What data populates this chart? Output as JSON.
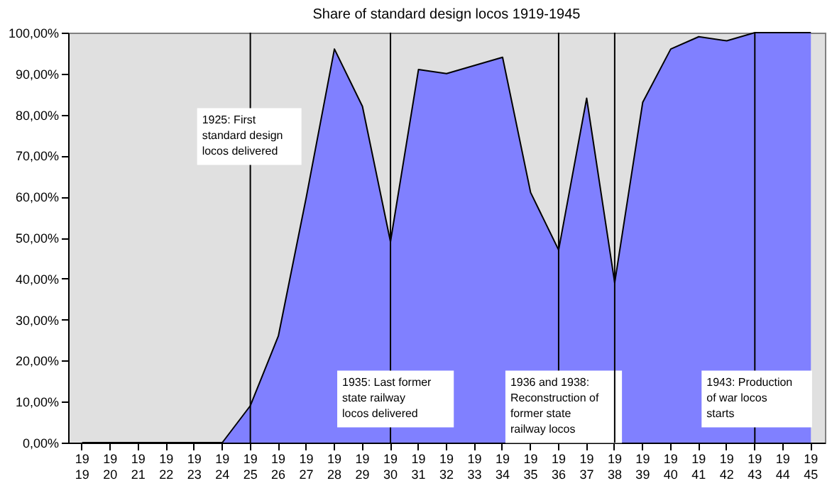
{
  "chart_data": {
    "type": "area",
    "title": "Share of standard design locos 1919-1945",
    "categories": [
      "1919",
      "1920",
      "1921",
      "1922",
      "1923",
      "1924",
      "1925",
      "1926",
      "1927",
      "1928",
      "1929",
      "1930",
      "1931",
      "1932",
      "1933",
      "1934",
      "1935",
      "1936",
      "1937",
      "1938",
      "1939",
      "1940",
      "1941",
      "1942",
      "1943",
      "1944",
      "1945"
    ],
    "series": [
      {
        "color": "#8080ff",
        "values": [
          0,
          0,
          0,
          0,
          0,
          0,
          9,
          26,
          60,
          96,
          82,
          49,
          91,
          90,
          92,
          94,
          61,
          47,
          84,
          39,
          83,
          96,
          99,
          98,
          100,
          100,
          100
        ]
      }
    ],
    "ylim": [
      0,
      100
    ],
    "yticks": [
      {
        "value": 0,
        "label": "0,00%"
      },
      {
        "value": 10,
        "label": "10,00%"
      },
      {
        "value": 20,
        "label": "20,00%"
      },
      {
        "value": 30,
        "label": "30,00%"
      },
      {
        "value": 40,
        "label": "40,00%"
      },
      {
        "value": 50,
        "label": "50,00%"
      },
      {
        "value": 60,
        "label": "60,00%"
      },
      {
        "value": 70,
        "label": "70,00%"
      },
      {
        "value": 80,
        "label": "80,00%"
      },
      {
        "value": 90,
        "label": "90,00%"
      },
      {
        "value": 100,
        "label": "100,00%"
      }
    ],
    "grid": false,
    "ref_lines": [
      {
        "axis": "x",
        "value": "1925",
        "label": "1925: First standard design locos delivered"
      },
      {
        "axis": "x",
        "value": "1930",
        "label": "1935: Last former state railway locos delivered"
      },
      {
        "axis": "x",
        "value": "1936",
        "label": "1936 and 1938: Reconstruction of former state railway locos"
      },
      {
        "axis": "x",
        "value": "1938",
        "label": null
      },
      {
        "axis": "x",
        "value": "1943",
        "label": "1943: Production of war locos starts"
      }
    ]
  }
}
